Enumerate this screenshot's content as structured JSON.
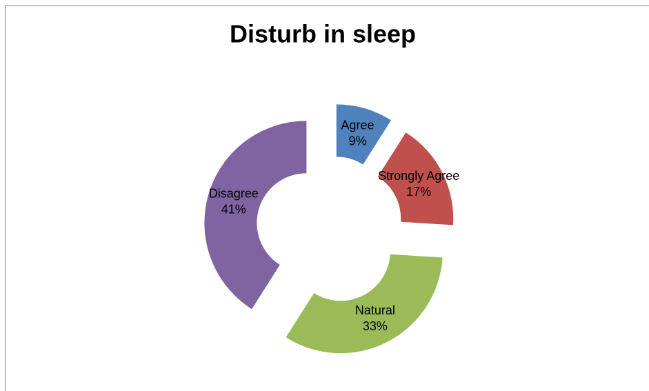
{
  "chart_data": {
    "type": "donut",
    "title": "Disturb in sleep",
    "categories": [
      "Agree",
      "Strongly Agree",
      "Natural",
      "Disagree"
    ],
    "values": [
      9,
      17,
      33,
      41
    ],
    "value_labels": [
      "9%",
      "17%",
      "33%",
      "41%"
    ],
    "colors": [
      "#4f81bd",
      "#c0504d",
      "#9bbb59",
      "#8064a2"
    ]
  }
}
